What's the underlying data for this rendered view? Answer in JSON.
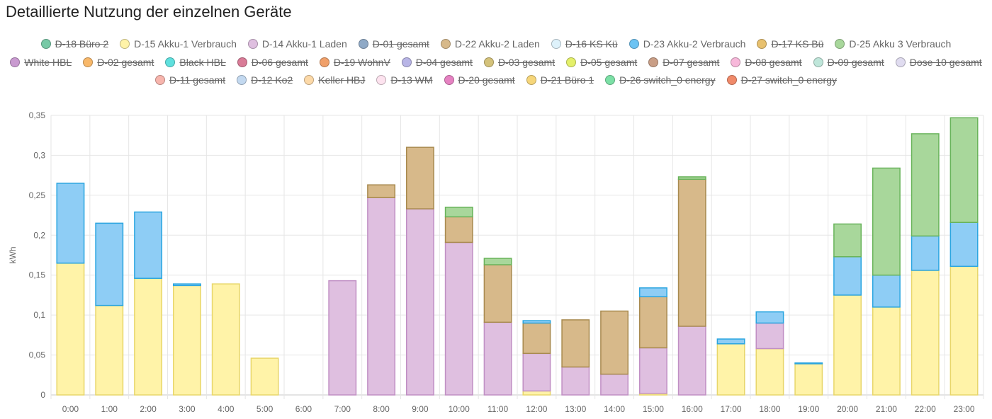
{
  "title": "Detaillierte Nutzung der einzelnen Geräte",
  "chart_data": {
    "type": "bar",
    "stacked": true,
    "ylabel": "kWh",
    "ylim": [
      0,
      0.35
    ],
    "yticks": [
      "0",
      "0,05",
      "0,1",
      "0,15",
      "0,2",
      "0,25",
      "0,3",
      "0,35"
    ],
    "grid": true,
    "legend_position": "top",
    "categories": [
      "0:00",
      "1:00",
      "2:00",
      "3:00",
      "4:00",
      "5:00",
      "6:00",
      "7:00",
      "8:00",
      "9:00",
      "10:00",
      "11:00",
      "12:00",
      "13:00",
      "14:00",
      "15:00",
      "16:00",
      "17:00",
      "18:00",
      "19:00",
      "20:00",
      "21:00",
      "22:00",
      "23:00"
    ],
    "series": [
      {
        "name": "D-15 Akku-1 Verbrauch",
        "color": "#fff3a8",
        "stroke": "#e8d66a",
        "visible": true,
        "values": [
          0.165,
          0.112,
          0.146,
          0.137,
          0.139,
          0.046,
          0,
          0,
          0,
          0,
          0,
          0,
          0.005,
          0,
          0,
          0.002,
          0,
          0.064,
          0.058,
          0.039,
          0.125,
          0.11,
          0.156,
          0.161
        ]
      },
      {
        "name": "D-14 Akku-1 Laden",
        "color": "#dfbfe0",
        "stroke": "#c08fc4",
        "visible": true,
        "values": [
          0,
          0,
          0,
          0,
          0,
          0,
          0,
          0.143,
          0.247,
          0.233,
          0.191,
          0.091,
          0.047,
          0.035,
          0.026,
          0.057,
          0.086,
          0,
          0.032,
          0,
          0,
          0,
          0,
          0
        ]
      },
      {
        "name": "D-22 Akku-2 Laden",
        "color": "#d7b98a",
        "stroke": "#a88a4f",
        "visible": true,
        "values": [
          0,
          0,
          0,
          0,
          0,
          0,
          0,
          0,
          0.016,
          0.077,
          0.032,
          0.072,
          0.038,
          0.059,
          0.079,
          0.064,
          0.184,
          0,
          0,
          0,
          0,
          0,
          0,
          0
        ]
      },
      {
        "name": "D-23 Akku-2 Verbrauch",
        "color": "#8ecdf5",
        "stroke": "#2aa5e0",
        "visible": true,
        "values": [
          0.1,
          0.103,
          0.083,
          0.002,
          0,
          0,
          0,
          0,
          0,
          0,
          0,
          0,
          0.003,
          0,
          0,
          0.011,
          0,
          0.006,
          0.014,
          0.001,
          0.048,
          0.04,
          0.043,
          0.055
        ]
      },
      {
        "name": "D-25 Akku 3 Verbrauch",
        "color": "#a8d79b",
        "stroke": "#68b35a",
        "visible": true,
        "values": [
          0,
          0,
          0,
          0,
          0,
          0,
          0,
          0,
          0,
          0,
          0.012,
          0.008,
          0,
          0,
          0,
          0,
          0.003,
          0,
          0,
          0,
          0.041,
          0.134,
          0.128,
          0.131
        ]
      }
    ],
    "legend": [
      {
        "label": "D-18 Büro 2",
        "color": "#77c9a6",
        "hidden": true
      },
      {
        "label": "D-15 Akku-1 Verbrauch",
        "color": "#fff3a8",
        "hidden": false
      },
      {
        "label": "D-14 Akku-1 Laden",
        "color": "#dfbfe0",
        "hidden": false
      },
      {
        "label": "D-01 gesamt",
        "color": "#8fa9c6",
        "hidden": true
      },
      {
        "label": "D-22 Akku-2 Laden",
        "color": "#d7b98a",
        "hidden": false
      },
      {
        "label": "D-16 KS Kü",
        "color": "#def2fb",
        "hidden": true
      },
      {
        "label": "D-23 Akku-2 Verbrauch",
        "color": "#6cc3f3",
        "hidden": false
      },
      {
        "label": "D-17 KS Bü",
        "color": "#e8c16f",
        "hidden": true
      },
      {
        "label": "D-25 Akku 3 Verbrauch",
        "color": "#a8d79b",
        "hidden": false
      },
      {
        "label": "White HBL",
        "color": "#c99ad0",
        "hidden": true
      },
      {
        "label": "D-02 gesamt",
        "color": "#f8b86a",
        "hidden": true
      },
      {
        "label": "Black HBL",
        "color": "#5fe0de",
        "hidden": true
      },
      {
        "label": "D-06 gesamt",
        "color": "#d97b97",
        "hidden": true
      },
      {
        "label": "D-19 WohnV",
        "color": "#f0a06a",
        "hidden": true
      },
      {
        "label": "D-04 gesamt",
        "color": "#b8b5e6",
        "hidden": true
      },
      {
        "label": "D-03 gesamt",
        "color": "#d4c27a",
        "hidden": true
      },
      {
        "label": "D-05 gesamt",
        "color": "#e4f06a",
        "hidden": true
      },
      {
        "label": "D-07 gesamt",
        "color": "#c99e86",
        "hidden": true
      },
      {
        "label": "D-08 gesamt",
        "color": "#f7b8da",
        "hidden": true
      },
      {
        "label": "D-09 gesamt",
        "color": "#bfe6da",
        "hidden": true
      },
      {
        "label": "Dose 10 gesamt",
        "color": "#e0dcf0",
        "hidden": true
      },
      {
        "label": "D-11 gesamt",
        "color": "#f7b5ad",
        "hidden": true
      },
      {
        "label": "D-12 Ko2",
        "color": "#c3d9f0",
        "hidden": true
      },
      {
        "label": "Keller HBJ",
        "color": "#fcd9a8",
        "hidden": true
      },
      {
        "label": "D-13 WM",
        "color": "#fde3ef",
        "hidden": true
      },
      {
        "label": "D-20 gesamt",
        "color": "#e682c2",
        "hidden": true
      },
      {
        "label": "D-21 Büro 1",
        "color": "#f6d67a",
        "hidden": true
      },
      {
        "label": "D-26 switch_0 energy",
        "color": "#7ce0a6",
        "hidden": true
      },
      {
        "label": "D-27 switch_0 energy",
        "color": "#f08a6a",
        "hidden": true
      }
    ]
  }
}
